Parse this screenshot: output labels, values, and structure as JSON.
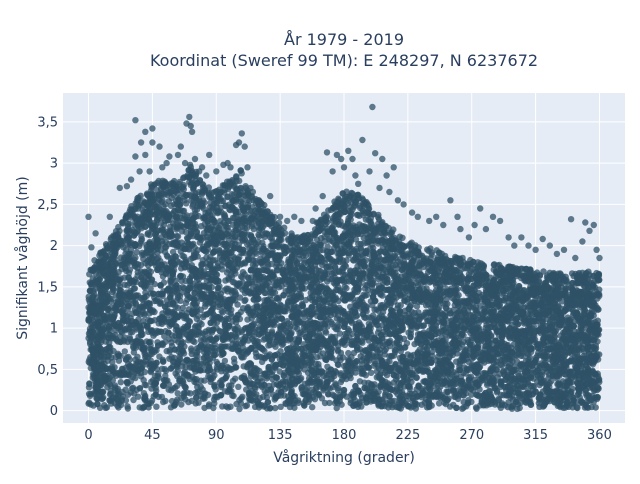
{
  "chart_data": {
    "type": "scatter",
    "title_lines": [
      "År 1979 - 2019",
      "Koordinat (Sweref 99 TM): E 248297, N 6237672"
    ],
    "xlabel": "Vågriktning (grader)",
    "ylabel": "Signifikant våghöjd (m)",
    "xlim": [
      -18,
      378
    ],
    "ylim": [
      -0.15,
      3.85
    ],
    "xticks": [
      0,
      45,
      90,
      135,
      180,
      225,
      270,
      315,
      360
    ],
    "xtick_labels": [
      "0",
      "45",
      "90",
      "135",
      "180",
      "225",
      "270",
      "315",
      "360"
    ],
    "yticks": [
      0,
      0.5,
      1,
      1.5,
      2,
      2.5,
      3,
      3.5
    ],
    "ytick_labels": [
      "0",
      "0,5",
      "1",
      "1,5",
      "2",
      "2,5",
      "3",
      "3,5"
    ],
    "grid": true,
    "marker_color": "#2f5167",
    "plot_bg": "#e5ecf6",
    "envelope": {
      "x": [
        0,
        5,
        15,
        25,
        35,
        45,
        55,
        65,
        72,
        80,
        90,
        100,
        108,
        115,
        125,
        135,
        145,
        155,
        165,
        175,
        180,
        190,
        200,
        210,
        220,
        230,
        240,
        250,
        260,
        270,
        280,
        290,
        300,
        310,
        320,
        330,
        340,
        350,
        360
      ],
      "y": [
        1.6,
        1.8,
        2.0,
        2.3,
        2.55,
        2.7,
        2.75,
        2.7,
        2.95,
        2.7,
        2.6,
        2.75,
        2.85,
        2.6,
        2.4,
        2.2,
        2.05,
        2.1,
        2.3,
        2.5,
        2.6,
        2.55,
        2.4,
        2.2,
        2.05,
        1.95,
        1.9,
        1.85,
        1.8,
        1.75,
        1.72,
        1.7,
        1.68,
        1.65,
        1.62,
        1.6,
        1.6,
        1.62,
        1.6
      ]
    },
    "outliers": [
      [
        0,
        2.35
      ],
      [
        2,
        1.98
      ],
      [
        5,
        2.15
      ],
      [
        15,
        2.35
      ],
      [
        22,
        2.7
      ],
      [
        27,
        2.72
      ],
      [
        30,
        2.8
      ],
      [
        33,
        3.52
      ],
      [
        33,
        3.08
      ],
      [
        36,
        2.9
      ],
      [
        37,
        3.25
      ],
      [
        40,
        3.1
      ],
      [
        40,
        3.38
      ],
      [
        43,
        2.9
      ],
      [
        45,
        3.42
      ],
      [
        45,
        3.25
      ],
      [
        50,
        3.2
      ],
      [
        52,
        2.95
      ],
      [
        55,
        3.0
      ],
      [
        57,
        3.08
      ],
      [
        60,
        2.75
      ],
      [
        63,
        3.1
      ],
      [
        65,
        3.2
      ],
      [
        68,
        3.0
      ],
      [
        69,
        3.48
      ],
      [
        71,
        3.56
      ],
      [
        72,
        3.45
      ],
      [
        73,
        3.38
      ],
      [
        75,
        3.05
      ],
      [
        78,
        2.9
      ],
      [
        80,
        2.95
      ],
      [
        83,
        2.85
      ],
      [
        85,
        3.1
      ],
      [
        90,
        2.9
      ],
      [
        95,
        2.98
      ],
      [
        98,
        3.0
      ],
      [
        100,
        2.95
      ],
      [
        104,
        3.22
      ],
      [
        106,
        3.25
      ],
      [
        108,
        3.36
      ],
      [
        110,
        3.2
      ],
      [
        112,
        2.95
      ],
      [
        115,
        2.6
      ],
      [
        120,
        2.5
      ],
      [
        123,
        2.45
      ],
      [
        128,
        2.6
      ],
      [
        135,
        2.35
      ],
      [
        140,
        2.3
      ],
      [
        145,
        2.35
      ],
      [
        150,
        2.3
      ],
      [
        158,
        2.3
      ],
      [
        160,
        2.45
      ],
      [
        165,
        2.6
      ],
      [
        168,
        3.13
      ],
      [
        172,
        2.9
      ],
      [
        175,
        3.1
      ],
      [
        178,
        3.05
      ],
      [
        180,
        2.95
      ],
      [
        183,
        3.15
      ],
      [
        186,
        3.05
      ],
      [
        188,
        2.85
      ],
      [
        190,
        2.75
      ],
      [
        193,
        3.28
      ],
      [
        198,
        2.9
      ],
      [
        200,
        3.68
      ],
      [
        202,
        3.12
      ],
      [
        205,
        2.7
      ],
      [
        207,
        3.05
      ],
      [
        210,
        2.85
      ],
      [
        212,
        2.65
      ],
      [
        215,
        2.95
      ],
      [
        218,
        2.55
      ],
      [
        222,
        2.5
      ],
      [
        228,
        2.4
      ],
      [
        232,
        2.35
      ],
      [
        240,
        2.3
      ],
      [
        245,
        2.35
      ],
      [
        250,
        2.25
      ],
      [
        255,
        2.55
      ],
      [
        260,
        2.35
      ],
      [
        262,
        2.2
      ],
      [
        268,
        2.1
      ],
      [
        272,
        2.25
      ],
      [
        276,
        2.45
      ],
      [
        280,
        2.2
      ],
      [
        285,
        2.35
      ],
      [
        290,
        2.3
      ],
      [
        296,
        2.1
      ],
      [
        300,
        2.0
      ],
      [
        305,
        2.1
      ],
      [
        310,
        2.0
      ],
      [
        315,
        1.95
      ],
      [
        320,
        2.08
      ],
      [
        325,
        2.0
      ],
      [
        330,
        1.9
      ],
      [
        335,
        1.95
      ],
      [
        340,
        2.32
      ],
      [
        343,
        1.85
      ],
      [
        348,
        2.05
      ],
      [
        350,
        2.28
      ],
      [
        353,
        2.18
      ],
      [
        356,
        2.25
      ],
      [
        358,
        1.95
      ],
      [
        360,
        1.85
      ]
    ]
  }
}
